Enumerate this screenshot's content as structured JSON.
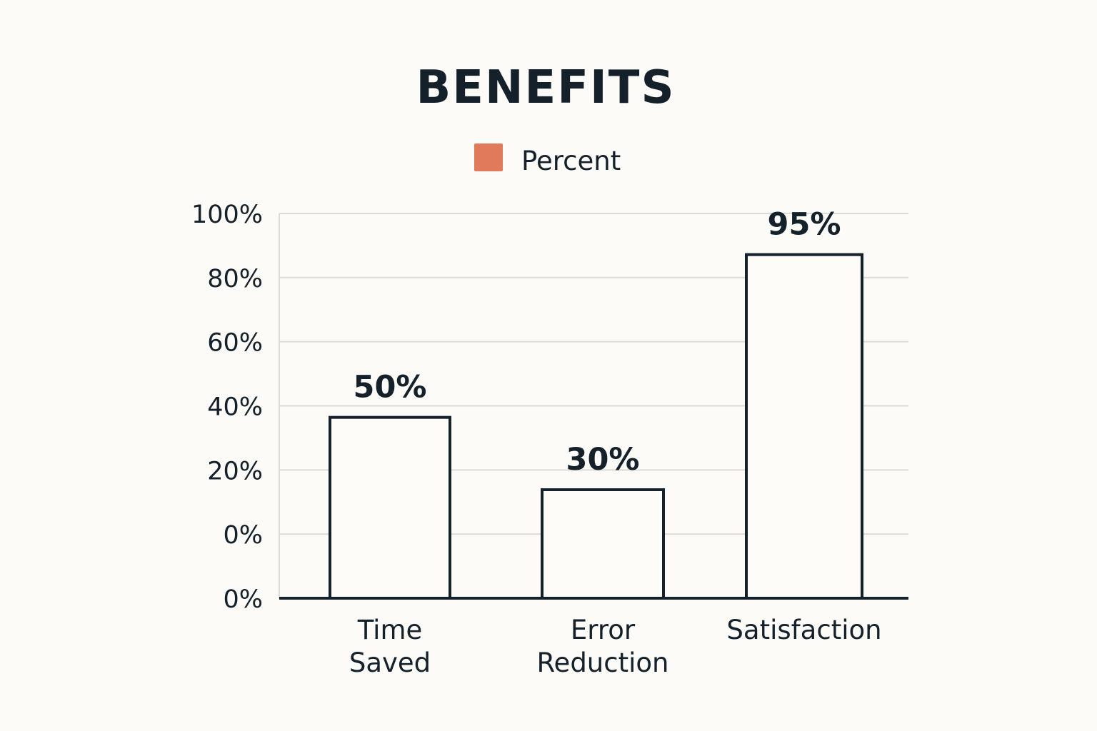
{
  "chart_data": {
    "type": "bar",
    "title": "BENEFITS",
    "legend": {
      "entries": [
        {
          "label": "Percent",
          "color": "#e07a5a"
        }
      ],
      "placement": "top-center"
    },
    "categories": [
      [
        "Time",
        "Saved"
      ],
      [
        "Error",
        "Reduction"
      ],
      [
        "Satisfaction"
      ]
    ],
    "values": [
      50,
      30,
      95
    ],
    "value_labels": [
      "50%",
      "30%",
      "95%"
    ],
    "y_tick_labels": [
      "100%",
      "80%",
      "60%",
      "40%",
      "20%",
      "0%",
      "0%"
    ],
    "ylim": [
      0,
      100
    ],
    "grid": true,
    "xlabel": "",
    "ylabel": "",
    "colors": {
      "bar_fill": "#fdfcf8",
      "bar_stroke": "#14202a",
      "grid": "#dddbd6",
      "axis": "#14202a",
      "text": "#14202a"
    }
  }
}
